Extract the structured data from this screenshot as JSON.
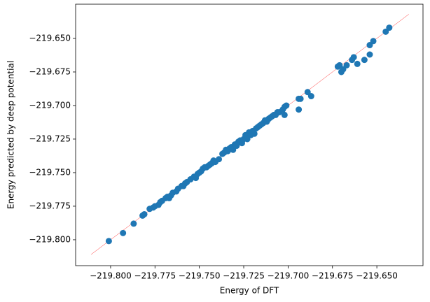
{
  "chart_data": {
    "type": "scatter",
    "xlabel": "Energy of DFT",
    "ylabel": "Energy predicted by deep potential",
    "color": "#1f77b4",
    "x": [
      -219.801,
      -219.793,
      -219.787,
      -219.782,
      -219.781,
      -219.778,
      -219.776,
      -219.775,
      -219.773,
      -219.772,
      -219.771,
      -219.769,
      -219.768,
      -219.767,
      -219.766,
      -219.765,
      -219.763,
      -219.762,
      -219.76,
      -219.759,
      -219.758,
      -219.757,
      -219.755,
      -219.753,
      -219.752,
      -219.751,
      -219.75,
      -219.749,
      -219.748,
      -219.747,
      -219.746,
      -219.745,
      -219.744,
      -219.743,
      -219.742,
      -219.741,
      -219.739,
      -219.737,
      -219.736,
      -219.735,
      -219.734,
      -219.733,
      -219.732,
      -219.731,
      -219.73,
      -219.729,
      -219.728,
      -219.727,
      -219.726,
      -219.725,
      -219.724,
      -219.723,
      -219.722,
      -219.721,
      -219.72,
      -219.719,
      -219.718,
      -219.717,
      -219.716,
      -219.715,
      -219.714,
      -219.713,
      -219.712,
      -219.711,
      -219.71,
      -219.709,
      -219.708,
      -219.707,
      -219.706,
      -219.705,
      -219.703,
      -219.702,
      -219.701,
      -219.702,
      -219.694,
      -219.693,
      -219.694,
      -219.689,
      -219.687,
      -219.672,
      -219.671,
      -219.67,
      -219.669,
      -219.667,
      -219.664,
      -219.663,
      -219.661,
      -219.657,
      -219.654,
      -219.654,
      -219.652,
      -219.645,
      -219.643
    ],
    "values": [
      -219.801,
      -219.795,
      -219.788,
      -219.782,
      -219.781,
      -219.777,
      -219.776,
      -219.775,
      -219.774,
      -219.772,
      -219.771,
      -219.769,
      -219.768,
      -219.769,
      -219.767,
      -219.765,
      -219.764,
      -219.762,
      -219.76,
      -219.76,
      -219.758,
      -219.757,
      -219.755,
      -219.753,
      -219.754,
      -219.751,
      -219.75,
      -219.749,
      -219.747,
      -219.746,
      -219.746,
      -219.745,
      -219.744,
      -219.743,
      -219.741,
      -219.742,
      -219.74,
      -219.736,
      -219.735,
      -219.733,
      -219.734,
      -219.732,
      -219.731,
      -219.733,
      -219.729,
      -219.73,
      -219.727,
      -219.726,
      -219.728,
      -219.725,
      -219.722,
      -219.725,
      -219.72,
      -219.722,
      -219.719,
      -219.721,
      -219.717,
      -219.716,
      -219.715,
      -219.714,
      -219.713,
      -219.711,
      -219.712,
      -219.71,
      -219.709,
      -219.708,
      -219.707,
      -219.707,
      -219.705,
      -219.705,
      -219.703,
      -219.701,
      -219.7,
      -219.707,
      -219.695,
      -219.695,
      -219.703,
      -219.69,
      -219.693,
      -219.671,
      -219.67,
      -219.675,
      -219.673,
      -219.67,
      -219.666,
      -219.664,
      -219.669,
      -219.666,
      -219.662,
      -219.655,
      -219.652,
      -219.645,
      -219.642
    ],
    "reference_line": {
      "x": [
        -219.811,
        -219.632
      ],
      "y": [
        -219.811,
        -219.632
      ],
      "color": "#ff0000"
    },
    "xlim": [
      -219.8197,
      -219.624
    ],
    "ylim": [
      -219.8193,
      -219.6245
    ],
    "xticks": [
      {
        "value": -219.8,
        "label": "−219.800"
      },
      {
        "value": -219.775,
        "label": "−219.775"
      },
      {
        "value": -219.75,
        "label": "−219.750"
      },
      {
        "value": -219.725,
        "label": "−219.725"
      },
      {
        "value": -219.7,
        "label": "−219.700"
      },
      {
        "value": -219.675,
        "label": "−219.675"
      },
      {
        "value": -219.65,
        "label": "−219.650"
      }
    ],
    "yticks": [
      {
        "value": -219.8,
        "label": "−219.800"
      },
      {
        "value": -219.775,
        "label": "−219.775"
      },
      {
        "value": -219.75,
        "label": "−219.750"
      },
      {
        "value": -219.725,
        "label": "−219.725"
      },
      {
        "value": -219.7,
        "label": "−219.700"
      },
      {
        "value": -219.675,
        "label": "−219.675"
      },
      {
        "value": -219.65,
        "label": "−219.650"
      }
    ]
  }
}
